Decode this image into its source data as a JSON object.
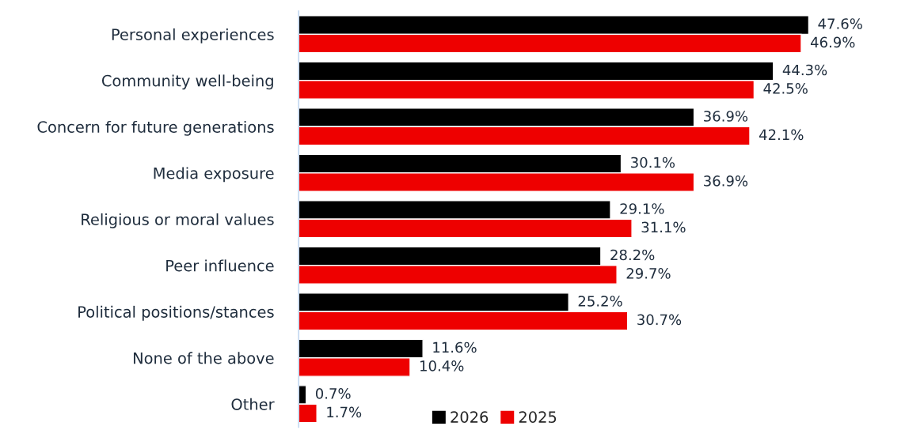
{
  "chart_data": {
    "type": "bar",
    "orientation": "horizontal",
    "legend": "bottom",
    "categories": [
      "Personal experiences",
      "Community well-being",
      "Concern for future generations",
      "Media exposure",
      "Religious or moral values",
      "Peer influence",
      "Political positions/stances",
      "None of the above",
      "Other"
    ],
    "series": [
      {
        "name": "2026",
        "color": "#000000",
        "values": [
          47.6,
          44.3,
          36.9,
          30.1,
          29.1,
          28.2,
          25.2,
          11.6,
          0.7
        ],
        "value_labels": [
          "47.6%",
          "44.3%",
          "36.9%",
          "30.1%",
          "29.1%",
          "28.2%",
          "25.2%",
          "11.6%",
          "0.7%"
        ]
      },
      {
        "name": "2025",
        "color": "#ee0000",
        "values": [
          46.9,
          42.5,
          42.1,
          36.9,
          31.1,
          29.7,
          30.7,
          10.4,
          1.7
        ],
        "value_labels": [
          "46.9%",
          "42.5%",
          "42.1%",
          "36.9%",
          "31.1%",
          "29.7%",
          "30.7%",
          "10.4%",
          "1.7%"
        ]
      }
    ]
  }
}
